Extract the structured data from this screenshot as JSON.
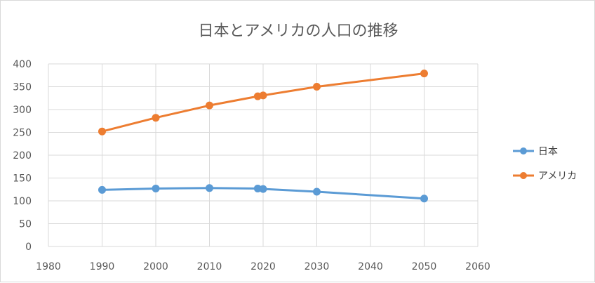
{
  "chart_data": {
    "type": "line",
    "title": "日本とアメリカの人口の推移",
    "xlabel": "",
    "ylabel": "",
    "xlim": [
      1980,
      2060
    ],
    "ylim": [
      0,
      400
    ],
    "xticks": [
      1980,
      1990,
      2000,
      2010,
      2020,
      2030,
      2040,
      2050,
      2060
    ],
    "yticks": [
      0,
      50,
      100,
      150,
      200,
      250,
      300,
      350,
      400
    ],
    "grid": true,
    "legend_position": "right",
    "series": [
      {
        "name": "日本",
        "color": "#5B9BD5",
        "points": [
          [
            1990,
            124
          ],
          [
            2000,
            127
          ],
          [
            2010,
            128
          ],
          [
            2019,
            127
          ],
          [
            2020,
            126
          ],
          [
            2030,
            120
          ],
          [
            2050,
            105
          ]
        ]
      },
      {
        "name": "アメリカ",
        "color": "#ED7D31",
        "points": [
          [
            1990,
            252
          ],
          [
            2000,
            282
          ],
          [
            2010,
            309
          ],
          [
            2019,
            329
          ],
          [
            2020,
            331
          ],
          [
            2030,
            350
          ],
          [
            2050,
            379
          ]
        ]
      }
    ]
  }
}
